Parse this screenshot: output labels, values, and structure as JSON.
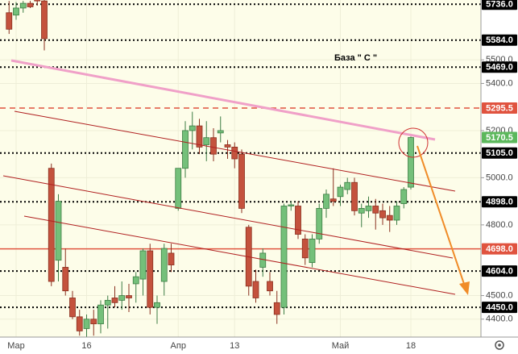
{
  "chart_data": {
    "type": "candlestick",
    "annotation": "База  \" С \"",
    "categories": [
      null,
      "Мар",
      null,
      null,
      null,
      null,
      null,
      null,
      null,
      null,
      null,
      "16",
      null,
      null,
      null,
      null,
      null,
      null,
      null,
      null,
      null,
      null,
      null,
      null,
      "Апр",
      null,
      null,
      null,
      null,
      null,
      null,
      null,
      "13",
      null,
      null,
      null,
      null,
      null,
      null,
      null,
      null,
      null,
      null,
      null,
      null,
      null,
      null,
      "Май",
      null,
      null,
      null,
      null,
      null,
      null,
      null,
      null,
      null,
      "18"
    ],
    "open": [
      5700,
      5690,
      5720,
      5740,
      5760,
      5750,
      5040,
      4650,
      4620,
      4490,
      4410,
      4360,
      4400,
      4380,
      4460,
      4490,
      4480,
      4500,
      4550,
      4570,
      4690,
      4450,
      4560,
      4680,
      4870,
      5040,
      5200,
      5220,
      5140,
      5170,
      5190,
      5140,
      5130,
      5100,
      4790,
      4560,
      4620,
      4560,
      4470,
      4450,
      4880,
      4880,
      4740,
      4640,
      4740,
      4870,
      4910,
      4920,
      4950,
      4980,
      4850,
      4860,
      4880,
      4860,
      4840,
      4820,
      4890,
      4960
    ],
    "high": [
      5750,
      5745,
      5750,
      5750,
      5800,
      5760,
      5060,
      4930,
      4700,
      4520,
      4440,
      4420,
      4440,
      4480,
      4500,
      4540,
      4560,
      4550,
      4600,
      4700,
      4720,
      4500,
      4720,
      4720,
      5040,
      5240,
      5280,
      5250,
      5240,
      5210,
      5260,
      5160,
      5150,
      5120,
      4800,
      4610,
      4700,
      4600,
      4520,
      4890,
      4900,
      4900,
      4760,
      4760,
      4890,
      4950,
      5040,
      4970,
      5000,
      5000,
      4890,
      4920,
      4910,
      4890,
      4880,
      4900,
      4960,
      5175
    ],
    "low": [
      5610,
      5670,
      5700,
      5720,
      5730,
      5540,
      4540,
      4560,
      4500,
      4400,
      4330,
      4320,
      4330,
      4340,
      4360,
      4450,
      4440,
      4430,
      4470,
      4500,
      4420,
      4380,
      4500,
      4600,
      4860,
      5000,
      5120,
      5100,
      5070,
      5070,
      5150,
      5080,
      5040,
      4850,
      4500,
      4470,
      4580,
      4500,
      4380,
      4420,
      4860,
      4740,
      4630,
      4620,
      4720,
      4830,
      4880,
      4880,
      4930,
      4840,
      4790,
      4830,
      4780,
      4800,
      4770,
      4800,
      4870,
      4950
    ],
    "close": [
      5630,
      5720,
      5740,
      5725,
      5750,
      5590,
      4560,
      4900,
      4520,
      4410,
      4350,
      4400,
      4380,
      4460,
      4480,
      4470,
      4500,
      4490,
      4580,
      4690,
      4450,
      4470,
      4700,
      4630,
      5040,
      5200,
      5220,
      5130,
      5170,
      5100,
      5200,
      5130,
      5080,
      4870,
      4540,
      4490,
      4680,
      4520,
      4420,
      4880,
      4885,
      4760,
      4660,
      4740,
      4870,
      4930,
      4900,
      4960,
      4980,
      4860,
      4870,
      4880,
      4850,
      4830,
      4820,
      4880,
      4950,
      5170.5
    ],
    "up_color": "#74c07a",
    "down_color": "#c4523d",
    "ylim": [
      4324,
      5754
    ],
    "yticks": [
      {
        "value": 5500,
        "label": "5500.0"
      },
      {
        "value": 5400,
        "label": "5400.0"
      },
      {
        "value": 5200,
        "label": "5200.0"
      },
      {
        "value": 5000,
        "label": "5000.0"
      },
      {
        "value": 4800,
        "label": "4800.0"
      },
      {
        "value": 4500,
        "label": "4500.0"
      },
      {
        "value": 4400,
        "label": "4400.0"
      }
    ],
    "grid": true,
    "levels": [
      {
        "value": 5736,
        "label": "5736.0",
        "color": "#000000",
        "style": "dotted"
      },
      {
        "value": 5584,
        "label": "5584.0",
        "color": "#000000",
        "style": "dotted"
      },
      {
        "value": 5469,
        "label": "5469.0",
        "color": "#000000",
        "style": "dotted"
      },
      {
        "value": 5295.5,
        "label": "5295.5",
        "color": "#e0533f",
        "style": "dashed"
      },
      {
        "value": 5170.5,
        "label": "5170.5",
        "color": "#5cb85c",
        "style": "none"
      },
      {
        "value": 5105,
        "label": "5105.0",
        "color": "#000000",
        "style": "dotted"
      },
      {
        "value": 4898,
        "label": "4898.0",
        "color": "#000000",
        "style": "dotted"
      },
      {
        "value": 4698,
        "label": "4698.0",
        "color": "#e0533f",
        "style": "solid"
      },
      {
        "value": 4604,
        "label": "4604.0",
        "color": "#000000",
        "style": "dotted"
      },
      {
        "value": 4450,
        "label": "4450.0",
        "color": "#000000",
        "style": "dotted"
      }
    ]
  }
}
